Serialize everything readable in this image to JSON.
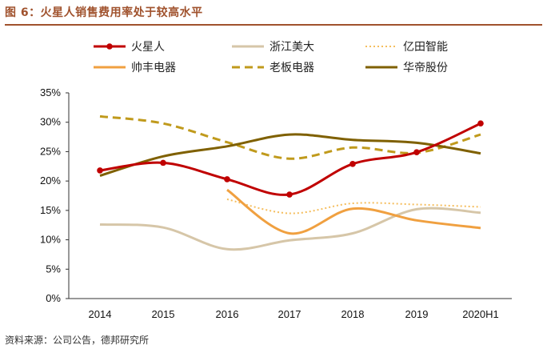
{
  "title": "图 6：火星人销售费用率处于较高水平",
  "source": "资料来源：公司公告，德邦研究所",
  "chart_data": {
    "type": "line",
    "categories": [
      "2014",
      "2015",
      "2016",
      "2017",
      "2018",
      "2019",
      "2020H1"
    ],
    "ylim": [
      0,
      35
    ],
    "yticks": [
      "0%",
      "5%",
      "10%",
      "15%",
      "20%",
      "25%",
      "30%",
      "35%"
    ],
    "legend_position": "top",
    "grid": false,
    "series": [
      {
        "name": "火星人",
        "color": "#c00000",
        "style": "solid-marker",
        "values": [
          21.8,
          23.1,
          20.3,
          17.7,
          22.9,
          24.9,
          29.8
        ]
      },
      {
        "name": "浙江美大",
        "color": "#d6c6a8",
        "style": "solid",
        "values": [
          12.6,
          12.1,
          8.4,
          9.9,
          11.1,
          15.2,
          14.6
        ]
      },
      {
        "name": "亿田智能",
        "color": "#f5be5e",
        "style": "dotted",
        "values": [
          null,
          null,
          16.9,
          14.5,
          16.2,
          16.0,
          15.6
        ]
      },
      {
        "name": "帅丰电器",
        "color": "#f0a040",
        "style": "solid",
        "values": [
          null,
          null,
          18.5,
          11.1,
          15.3,
          13.3,
          12.0
        ]
      },
      {
        "name": "老板电器",
        "color": "#c09a1c",
        "style": "dashed",
        "values": [
          31.0,
          29.8,
          26.6,
          23.8,
          25.7,
          24.8,
          27.9
        ]
      },
      {
        "name": "华帝股份",
        "color": "#7f6000",
        "style": "solid",
        "values": [
          20.9,
          24.2,
          25.9,
          27.9,
          27.0,
          26.5,
          24.7
        ]
      }
    ]
  }
}
